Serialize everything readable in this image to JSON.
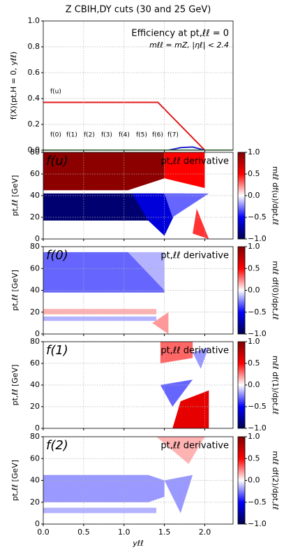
{
  "chart_data": [
    {
      "type": "line",
      "title": "Z CBIH,DY cuts (30 and 25 GeV)",
      "ylabel": "f(X)(pt,H = 0, yℓℓ)",
      "annotations": [
        "Efficiency at pt,ℓℓ = 0",
        "mℓℓ = mZ, |ηℓ| < 2.4"
      ],
      "line_labels": [
        "f(u)",
        "f(0)",
        "f(1)",
        "f(2)",
        "f(3)",
        "f(4)",
        "f(5)",
        "f(6)",
        "f(7)"
      ],
      "xlim": [
        0,
        2.35
      ],
      "ylim": [
        0,
        1
      ],
      "yticks": [
        {
          "value": 0,
          "label": "0.0"
        },
        {
          "value": 0.2,
          "label": "0.2"
        },
        {
          "value": 0.4,
          "label": "0.4"
        },
        {
          "value": 0.6,
          "label": "0.6"
        },
        {
          "value": 0.8,
          "label": "0.8"
        },
        {
          "value": 1,
          "label": "1.0"
        }
      ],
      "grid": true,
      "series": [
        {
          "color": "#e31a1c",
          "x": [
            0,
            1.42,
            2.0
          ],
          "values": [
            0.37,
            0.37,
            0.0
          ]
        },
        {
          "color": "#2222cc",
          "x": [
            1.55,
            1.7,
            1.85,
            2.0
          ],
          "values": [
            0.0,
            0.02,
            0.025,
            0.0
          ]
        },
        {
          "color": "#2ca02c",
          "x": [
            0,
            2.35
          ],
          "values": [
            0.0,
            0.0
          ]
        }
      ]
    },
    {
      "type": "heatmap",
      "label": "f(u)",
      "annotation": "pt,ℓℓ derivative",
      "ylabel": "pt,ℓℓ [GeV]",
      "cbar_label": "mℓℓ df(u)/dpt,ℓℓ",
      "xlim": [
        0,
        2.35
      ],
      "ylim": [
        0,
        80
      ],
      "yticks": [
        0,
        20,
        40,
        60,
        80
      ],
      "regions": [
        {
          "value": 0.95,
          "points": [
            [
              0,
              80
            ],
            [
              1.5,
              80
            ],
            [
              1.5,
              56
            ],
            [
              1.05,
              45
            ],
            [
              0,
              45
            ]
          ]
        },
        {
          "value": 0.5,
          "points": [
            [
              1.5,
              80
            ],
            [
              2.0,
              80
            ],
            [
              2.0,
              47
            ],
            [
              1.5,
              56
            ]
          ]
        },
        {
          "value": -0.9,
          "points": [
            [
              0,
              42
            ],
            [
              1.4,
              42
            ],
            [
              1.4,
              17
            ],
            [
              0,
              17
            ]
          ]
        },
        {
          "value": -0.6,
          "points": [
            [
              1.1,
              42
            ],
            [
              1.75,
              42
            ],
            [
              1.5,
              3
            ],
            [
              1.3,
              17
            ]
          ]
        },
        {
          "value": -0.3,
          "points": [
            [
              1.5,
              42
            ],
            [
              2.05,
              42
            ],
            [
              1.6,
              20
            ]
          ]
        },
        {
          "value": 0.4,
          "points": [
            [
              1.9,
              28
            ],
            [
              2.05,
              0
            ],
            [
              1.85,
              5
            ]
          ]
        }
      ]
    },
    {
      "type": "heatmap",
      "label": "f(0)",
      "annotation": "pt,ℓℓ derivative",
      "ylabel": "pt,ℓℓ [GeV]",
      "cbar_label": "mℓℓ df(0)/dpt,ℓℓ",
      "xlim": [
        0,
        2.35
      ],
      "ylim": [
        0,
        80
      ],
      "yticks": [
        0,
        20,
        40,
        60,
        80
      ],
      "regions": [
        {
          "value": -0.3,
          "points": [
            [
              0,
              75
            ],
            [
              1.05,
              75
            ],
            [
              1.5,
              40
            ],
            [
              1.5,
              38
            ],
            [
              0,
              38
            ]
          ]
        },
        {
          "value": -0.15,
          "points": [
            [
              1.05,
              75
            ],
            [
              1.5,
              75
            ],
            [
              1.5,
              40
            ]
          ]
        },
        {
          "value": 0.15,
          "points": [
            [
              0,
              23
            ],
            [
              1.4,
              23
            ],
            [
              1.4,
              18
            ],
            [
              0,
              18
            ]
          ]
        },
        {
          "value": -0.15,
          "points": [
            [
              0,
              16
            ],
            [
              1.4,
              16
            ],
            [
              1.4,
              12
            ],
            [
              0,
              12
            ]
          ]
        },
        {
          "value": 0.2,
          "points": [
            [
              1.35,
              10
            ],
            [
              1.55,
              20
            ],
            [
              1.55,
              0
            ]
          ]
        }
      ]
    },
    {
      "type": "heatmap",
      "label": "f(1)",
      "annotation": "pt,ℓℓ derivative",
      "ylabel": "pt,ℓℓ [GeV]",
      "cbar_label": "mℓℓ df(1)/dpt,ℓℓ",
      "xlim": [
        0,
        2.35
      ],
      "ylim": [
        0,
        80
      ],
      "yticks": [
        0,
        20,
        40,
        60,
        80
      ],
      "regions": [
        {
          "value": -0.3,
          "points": [
            [
              1.45,
              40
            ],
            [
              1.85,
              45
            ],
            [
              1.6,
              20
            ]
          ]
        },
        {
          "value": 0.6,
          "points": [
            [
              1.6,
              0
            ],
            [
              2.05,
              0
            ],
            [
              2.05,
              35
            ],
            [
              1.7,
              25
            ]
          ]
        },
        {
          "value": 0.3,
          "points": [
            [
              1.45,
              80
            ],
            [
              1.85,
              80
            ],
            [
              1.85,
              65
            ],
            [
              1.45,
              60
            ]
          ]
        },
        {
          "value": -0.2,
          "points": [
            [
              1.85,
              70
            ],
            [
              2.05,
              75
            ],
            [
              1.95,
              55
            ]
          ]
        }
      ]
    },
    {
      "type": "heatmap",
      "label": "f(2)",
      "annotation": "pt,ℓℓ derivative",
      "ylabel": "pt,ℓℓ [GeV]",
      "cbar_label": "mℓℓ df(2)/dpt,ℓℓ",
      "xlabel": "yℓℓ",
      "xlim": [
        0,
        2.35
      ],
      "ylim": [
        0,
        80
      ],
      "yticks": [
        0,
        20,
        40,
        60,
        80
      ],
      "xticks": [
        {
          "value": 0,
          "label": "0.0"
        },
        {
          "value": 0.5,
          "label": "0.5"
        },
        {
          "value": 1,
          "label": "1.0"
        },
        {
          "value": 1.5,
          "label": "1.5"
        },
        {
          "value": 2,
          "label": "2.0"
        }
      ],
      "regions": [
        {
          "value": -0.2,
          "points": [
            [
              0,
              45
            ],
            [
              1.3,
              45
            ],
            [
              1.5,
              40
            ],
            [
              1.5,
              25
            ],
            [
              1.3,
              20
            ],
            [
              0,
              20
            ]
          ]
        },
        {
          "value": -0.15,
          "points": [
            [
              0,
              15
            ],
            [
              1.4,
              15
            ],
            [
              1.4,
              10
            ],
            [
              0,
              10
            ]
          ]
        },
        {
          "value": 0.15,
          "points": [
            [
              1.4,
              80
            ],
            [
              2.0,
              80
            ],
            [
              1.8,
              55
            ]
          ]
        },
        {
          "value": -0.2,
          "points": [
            [
              1.5,
              40
            ],
            [
              1.85,
              45
            ],
            [
              1.7,
              10
            ]
          ]
        }
      ]
    }
  ],
  "colorbar": {
    "clim": [
      -1,
      1
    ],
    "colormap": [
      "#00004c",
      "#0000ff",
      "#ffffff",
      "#ff0000",
      "#800000"
    ],
    "ticks": [
      {
        "value": 1,
        "label": "1.0"
      },
      {
        "value": 0.5,
        "label": "0.5"
      },
      {
        "value": 0,
        "label": "0.0"
      },
      {
        "value": -0.5,
        "label": "−0.5"
      },
      {
        "value": -1,
        "label": "−1.0"
      }
    ]
  }
}
